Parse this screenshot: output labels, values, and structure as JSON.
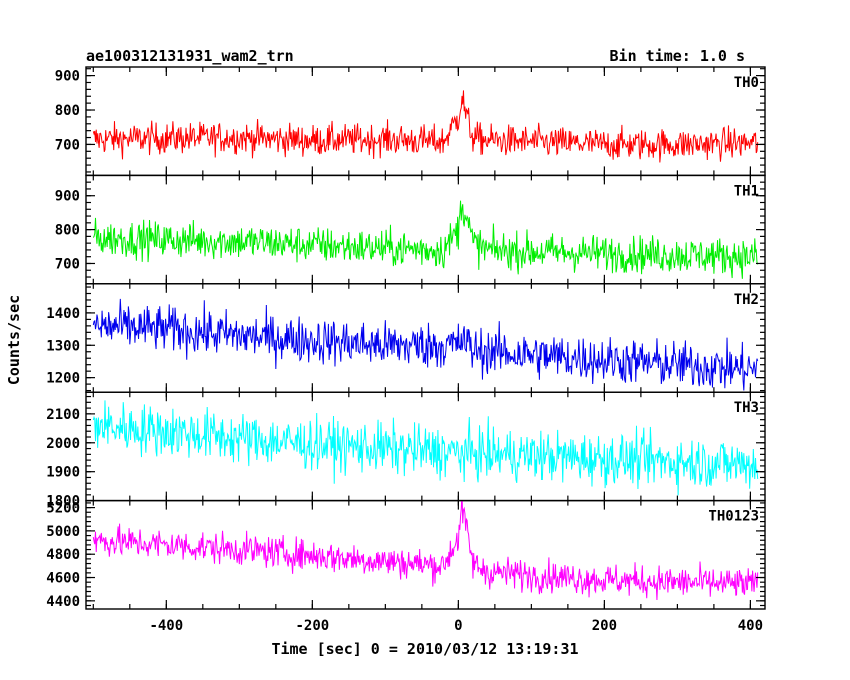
{
  "chart_data": {
    "type": "line",
    "title": "ae100312131931_wam2_trn",
    "subtitle": "Bin time: 1.0 s",
    "xlabel": "Time [sec] 0 = 2010/03/12 13:19:31",
    "ylabel": "Counts/sec",
    "xlim": [
      -510,
      420
    ],
    "xticks": [
      -400,
      -200,
      0,
      200,
      400
    ],
    "series": [
      {
        "name": "TH0",
        "color": "#ff0000",
        "ylim": [
          610,
          925
        ],
        "yticks": [
          700,
          800,
          900
        ],
        "x": [
          -500,
          -400,
          -300,
          -200,
          -100,
          -20,
          0,
          5,
          10,
          20,
          40,
          100,
          200,
          300,
          410
        ],
        "y": [
          715,
          718,
          720,
          712,
          715,
          708,
          780,
          840,
          790,
          720,
          712,
          708,
          700,
          700,
          705
        ],
        "noise": 32
      },
      {
        "name": "TH1",
        "color": "#00ee00",
        "ylim": [
          640,
          960
        ],
        "yticks": [
          700,
          800,
          900
        ],
        "x": [
          -500,
          -400,
          -300,
          -200,
          -100,
          -20,
          0,
          5,
          10,
          20,
          40,
          100,
          200,
          300,
          410
        ],
        "y": [
          775,
          770,
          765,
          755,
          745,
          740,
          800,
          880,
          850,
          760,
          740,
          735,
          730,
          725,
          720
        ],
        "noise": 38
      },
      {
        "name": "TH2",
        "color": "#0000ee",
        "ylim": [
          1155,
          1490
        ],
        "yticks": [
          1200,
          1300,
          1400
        ],
        "x": [
          -500,
          -400,
          -300,
          -200,
          -100,
          0,
          5,
          20,
          100,
          200,
          300,
          410
        ],
        "y": [
          1360,
          1350,
          1330,
          1315,
          1300,
          1300,
          1320,
          1285,
          1270,
          1255,
          1240,
          1225
        ],
        "noise": 50
      },
      {
        "name": "TH3",
        "color": "#00ffff",
        "ylim": [
          1800,
          2175
        ],
        "yticks": [
          1800,
          1900,
          2000,
          2100
        ],
        "x": [
          -500,
          -400,
          -300,
          -200,
          -100,
          0,
          100,
          200,
          300,
          410
        ],
        "y": [
          2060,
          2040,
          2015,
          1995,
          1980,
          1965,
          1955,
          1945,
          1935,
          1925
        ],
        "noise": 62
      },
      {
        "name": "TH0123",
        "color": "#ff00ff",
        "ylim": [
          4330,
          5260
        ],
        "yticks": [
          4400,
          4600,
          4800,
          5000,
          5200
        ],
        "x": [
          -500,
          -400,
          -300,
          -200,
          -100,
          -20,
          0,
          5,
          10,
          20,
          40,
          100,
          200,
          300,
          410
        ],
        "y": [
          4920,
          4880,
          4840,
          4790,
          4740,
          4700,
          4950,
          5200,
          5050,
          4720,
          4650,
          4620,
          4580,
          4560,
          4540
        ],
        "noise": 95
      }
    ]
  }
}
